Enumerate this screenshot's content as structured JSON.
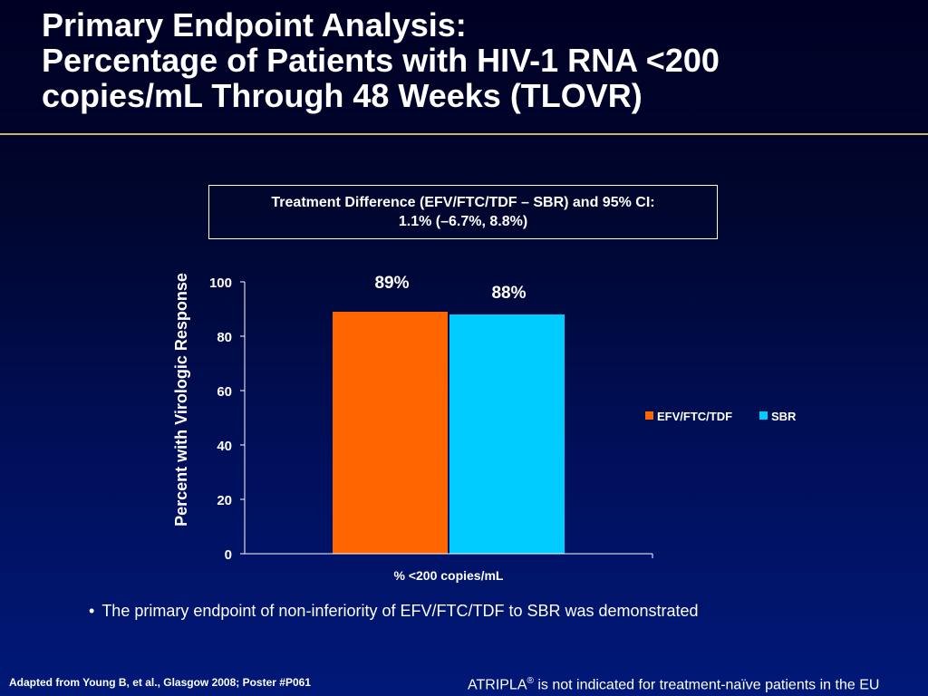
{
  "slide": {
    "title_line1": "Primary Endpoint Analysis:",
    "title_line2": "Percentage of Patients with HIV-1 RNA <200",
    "title_line3": "copies/mL Through 48 Weeks (TLOVR)",
    "diff_box_line1": "Treatment Difference (EFV/FTC/TDF – SBR) and 95% CI:",
    "diff_box_line2": "1.1% (–6.7%, 8.8%)",
    "bullet": "The primary endpoint of non-inferiority of EFV/FTC/TDF to SBR was demonstrated",
    "footnote_left": "Adapted from Young B, et al., Glasgow 2008; Poster #P061",
    "footnote_right_brand": "ATRIPLA",
    "footnote_right_reg": "®",
    "footnote_right_rest": " is not indicated for treatment-naïve patients in the EU",
    "accent_color": "#c8b46e"
  },
  "chart_data": {
    "type": "bar",
    "categories": [
      "% <200 copies/mL"
    ],
    "series": [
      {
        "name": "EFV/FTC/TDF",
        "values": [
          89
        ],
        "label": "89%",
        "color": "#ff6600"
      },
      {
        "name": "SBR",
        "values": [
          88
        ],
        "label": "88%",
        "color": "#00ccff"
      }
    ],
    "title": "",
    "xlabel": "",
    "ylabel": "Percent with Virologic Response",
    "ylim": [
      0,
      100
    ],
    "yticks": [
      0,
      20,
      40,
      60,
      80,
      100
    ],
    "grid": false,
    "legend_position": "right"
  }
}
